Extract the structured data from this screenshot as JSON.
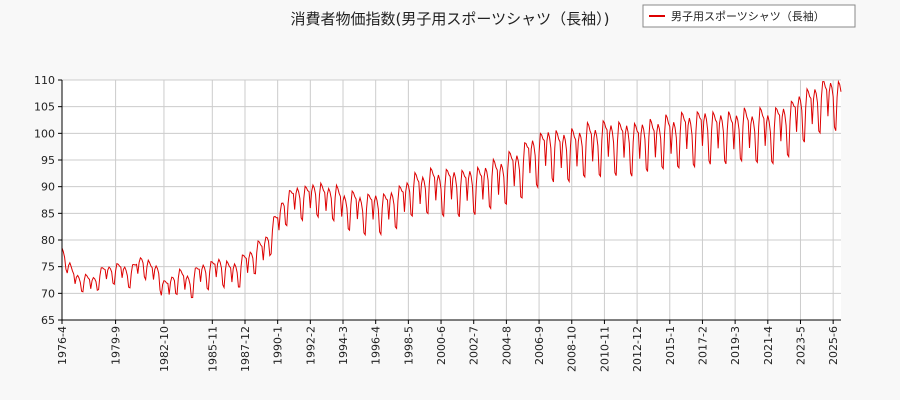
{
  "chart_data": {
    "type": "line",
    "title": "消費者物価指数(男子用スポーツシャツ（長袖）)",
    "xlabel": "",
    "ylabel": "",
    "ylim": [
      65,
      110
    ],
    "yticks": [
      65,
      70,
      75,
      80,
      85,
      90,
      95,
      100,
      105,
      110
    ],
    "x_range": [
      "1976-4",
      "2025-12"
    ],
    "xticks": [
      "1976-4",
      "1979-9",
      "1982-10",
      "1985-11",
      "1987-12",
      "1990-1",
      "1992-2",
      "1994-3",
      "1996-4",
      "1998-5",
      "2000-6",
      "2002-7",
      "2004-8",
      "2006-9",
      "2008-10",
      "2010-11",
      "2012-12",
      "2015-1",
      "2017-2",
      "2019-3",
      "2021-4",
      "2023-5",
      "2025-6"
    ],
    "grid": true,
    "legend_position": "top-right",
    "colors": {
      "series": "#dd0000",
      "grid": "#cccccc",
      "axis": "#000000",
      "background": "#f8f8f8",
      "plot_background": "#ffffff"
    },
    "series": [
      {
        "name": "男子用スポーツシャツ（長袖）",
        "anchors": [
          [
            "1976-4",
            77
          ],
          [
            "1977-1",
            73
          ],
          [
            "1977-6",
            71.5
          ],
          [
            "1978-6",
            72
          ],
          [
            "1979-6",
            74
          ],
          [
            "1980-6",
            73
          ],
          [
            "1981-6",
            75
          ],
          [
            "1982-6",
            73
          ],
          [
            "1982-10",
            70
          ],
          [
            "1983-6",
            72
          ],
          [
            "1984-6",
            71.5
          ],
          [
            "1985-6",
            73.5
          ],
          [
            "1986-6",
            74
          ],
          [
            "1987-6",
            73
          ],
          [
            "1987-12",
            75
          ],
          [
            "1988-6",
            76
          ],
          [
            "1989-1",
            77
          ],
          [
            "1989-8",
            80.5
          ],
          [
            "1990-1",
            82
          ],
          [
            "1990-6",
            86
          ],
          [
            "1991-6",
            87
          ],
          [
            "1992-6",
            87.5
          ],
          [
            "1993-6",
            87
          ],
          [
            "1994-6",
            85.5
          ],
          [
            "1995-6",
            85
          ],
          [
            "1996-6",
            85
          ],
          [
            "1997-6",
            85.5
          ],
          [
            "1998-6",
            88
          ],
          [
            "1999-6",
            89
          ],
          [
            "2000-6",
            89
          ],
          [
            "2001-6",
            89
          ],
          [
            "2002-6",
            89
          ],
          [
            "2003-6",
            90
          ],
          [
            "2004-6",
            91
          ],
          [
            "2005-6",
            92.5
          ],
          [
            "2006-6",
            95
          ],
          [
            "2007-6",
            96
          ],
          [
            "2008-6",
            95.5
          ],
          [
            "2009-6",
            96.5
          ],
          [
            "2010-6",
            97
          ],
          [
            "2011-6",
            97.5
          ],
          [
            "2012-6",
            97
          ],
          [
            "2013-6",
            97.5
          ],
          [
            "2014-6",
            98
          ],
          [
            "2015-6",
            98.5
          ],
          [
            "2016-6",
            99
          ],
          [
            "2017-6",
            99.5
          ],
          [
            "2018-6",
            99
          ],
          [
            "2019-6",
            99.5
          ],
          [
            "2020-6",
            99.5
          ],
          [
            "2021-6",
            99.5
          ],
          [
            "2022-6",
            100.5
          ],
          [
            "2023-6",
            103
          ],
          [
            "2024-6",
            104.5
          ],
          [
            "2025-6",
            106
          ],
          [
            "2025-12",
            104
          ]
        ],
        "seasonal_amplitude_early": 1.5,
        "seasonal_amplitude_late": 5
      }
    ]
  }
}
